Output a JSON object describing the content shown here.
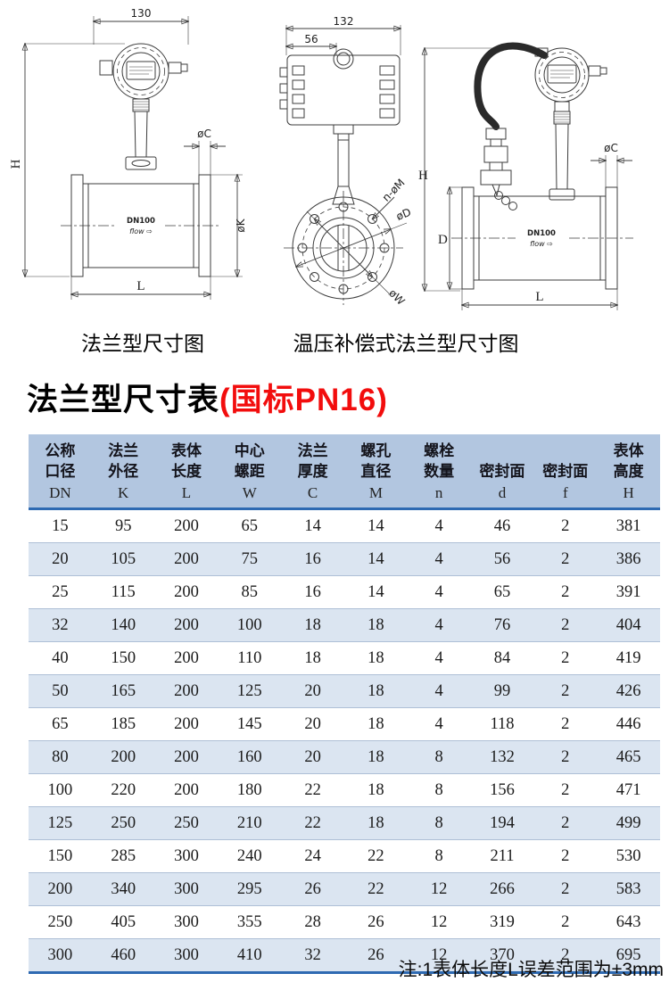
{
  "title": {
    "main": "法兰型尺寸表",
    "standard": "(国标PN16)"
  },
  "note": "注:1表体长度L误差范围为±3mm",
  "drawings": {
    "left": {
      "caption": "法兰型尺寸图",
      "dim_width": "130",
      "dim_height": "H",
      "dim_flange_thickness": "øC",
      "dim_flange_od": "øK",
      "dim_length": "L",
      "body_label": "DN100",
      "flow_label": "flow ⇨"
    },
    "middle": {
      "dim_width": "132",
      "dim_offset": "56",
      "label_bolt_holes": "n-øM",
      "label_d": "øD",
      "label_w": "øW"
    },
    "right": {
      "caption": "温压补偿式法兰型尺寸图",
      "dim_height": "H",
      "dim_body_height": "D",
      "dim_flange_thickness": "øC",
      "dim_length": "L",
      "body_label": "DN100",
      "flow_label": "flow ⇨"
    }
  },
  "table": {
    "headers": [
      {
        "line1": "公称",
        "line2": "口径",
        "letter": "DN"
      },
      {
        "line1": "法兰",
        "line2": "外径",
        "letter": "K"
      },
      {
        "line1": "表体",
        "line2": "长度",
        "letter": "L"
      },
      {
        "line1": "中心",
        "line2": "螺距",
        "letter": "W"
      },
      {
        "line1": "法兰",
        "line2": "厚度",
        "letter": "C"
      },
      {
        "line1": "螺孔",
        "line2": "直径",
        "letter": "M"
      },
      {
        "line1": "螺栓",
        "line2": "数量",
        "letter": "n"
      },
      {
        "line1": "",
        "line2": "密封面",
        "letter": "d"
      },
      {
        "line1": "",
        "line2": "密封面",
        "letter": "f"
      },
      {
        "line1": "表体",
        "line2": "高度",
        "letter": "H"
      }
    ],
    "rows": [
      [
        15,
        95,
        200,
        65,
        14,
        14,
        4,
        46,
        2,
        381
      ],
      [
        20,
        105,
        200,
        75,
        16,
        14,
        4,
        56,
        2,
        386
      ],
      [
        25,
        115,
        200,
        85,
        16,
        14,
        4,
        65,
        2,
        391
      ],
      [
        32,
        140,
        200,
        100,
        18,
        18,
        4,
        76,
        2,
        404
      ],
      [
        40,
        150,
        200,
        110,
        18,
        18,
        4,
        84,
        2,
        419
      ],
      [
        50,
        165,
        200,
        125,
        20,
        18,
        4,
        99,
        2,
        426
      ],
      [
        65,
        185,
        200,
        145,
        20,
        18,
        4,
        118,
        2,
        446
      ],
      [
        80,
        200,
        200,
        160,
        20,
        18,
        8,
        132,
        2,
        465
      ],
      [
        100,
        220,
        200,
        180,
        22,
        18,
        8,
        156,
        2,
        471
      ],
      [
        125,
        250,
        250,
        210,
        22,
        18,
        8,
        194,
        2,
        499
      ],
      [
        150,
        285,
        300,
        240,
        24,
        22,
        8,
        211,
        2,
        530
      ],
      [
        200,
        340,
        300,
        295,
        26,
        22,
        12,
        266,
        2,
        583
      ],
      [
        250,
        405,
        300,
        355,
        28,
        26,
        12,
        319,
        2,
        643
      ],
      [
        300,
        460,
        300,
        410,
        32,
        26,
        12,
        370,
        2,
        695
      ]
    ]
  },
  "colors": {
    "accent_red": "#f20d0d",
    "table_header_bg": "#b2c6e0",
    "table_row_alt_bg": "#dbe5f1",
    "table_rule_blue": "#2e6ab2"
  }
}
